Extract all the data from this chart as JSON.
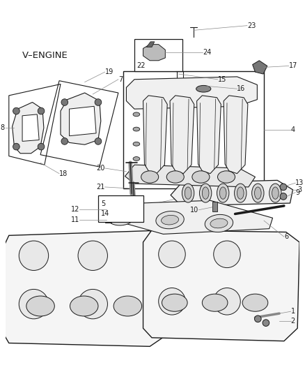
{
  "bg_color": "#ffffff",
  "line_color": "#1a1a1a",
  "label_color": "#1a1a1a",
  "leader_color": "#888888",
  "fig_width": 4.38,
  "fig_height": 5.33,
  "dpi": 100,
  "label_fontsize": 7.0,
  "veng_fontsize": 9.5,
  "num_fontsize": 7.0
}
